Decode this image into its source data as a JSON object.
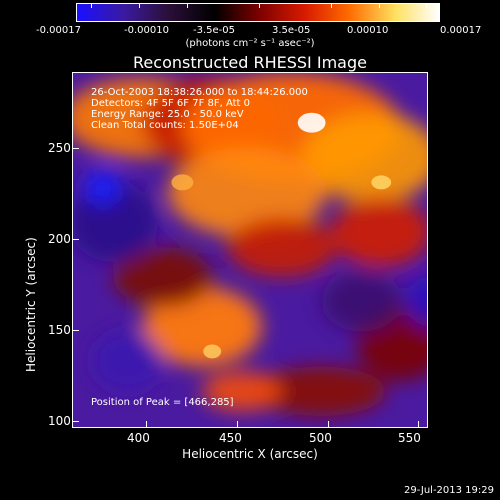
{
  "colorbar": {
    "labels": [
      "-0.00017",
      "-0.00010",
      "-3.5e-05",
      "3.5e-05",
      "0.00010",
      "0.00017"
    ],
    "units": "(photons cm⁻² s⁻¹ asec⁻²)",
    "colors": [
      "#1a10ff",
      "#3a1aa0",
      "#2b0f3a",
      "#000000",
      "#7a0000",
      "#d81b00",
      "#ff6a00",
      "#ffe060",
      "#ffffff"
    ]
  },
  "title": "Reconstructed RHESSI Image",
  "info_lines": [
    "26-Oct-2003 18:38:26.000 to 18:44:26.000",
    "Detectors: 4F 5F 6F 7F 8F, Att 0",
    "Energy Range: 25.0 - 50.0 keV",
    "Clean     Total counts: 1.50E+04"
  ],
  "peak_text": "Position of Peak = [466,285]",
  "x_axis": {
    "title": "Heliocentric X (arcsec)",
    "ticks": [
      "400",
      "450",
      "500",
      "550"
    ]
  },
  "y_axis": {
    "title": "Heliocentric Y (arcsec)",
    "ticks": [
      "100",
      "150",
      "200",
      "250"
    ]
  },
  "footer_date": "29-Jul-2013 19:29"
}
